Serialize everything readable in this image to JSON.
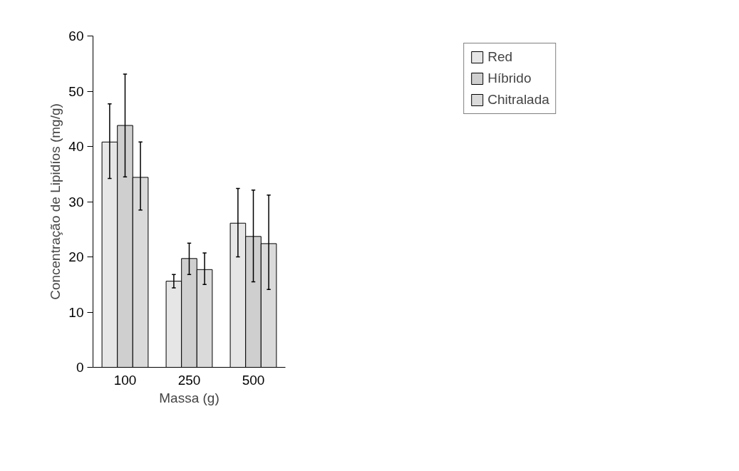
{
  "chart_data": {
    "type": "bar",
    "xlabel": "Massa (g)",
    "ylabel": "Concentração de Lipidíos (mg/g)",
    "categories": [
      "100",
      "250",
      "500"
    ],
    "ylim": [
      0,
      60
    ],
    "yticks": [
      0,
      10,
      20,
      30,
      40,
      50,
      60
    ],
    "grid": false,
    "legend": "top right",
    "series": [
      {
        "name": "Red",
        "color": "#e6e6e6",
        "values": [
          40.8,
          15.6,
          26.1
        ],
        "errors": [
          [
            34.2,
            47.7
          ],
          [
            14.4,
            16.8
          ],
          [
            20.0,
            32.4
          ]
        ]
      },
      {
        "name": "Híbrido",
        "color": "#cfcfcf",
        "values": [
          43.8,
          19.7,
          23.7
        ],
        "errors": [
          [
            34.5,
            53.1
          ],
          [
            16.8,
            22.5
          ],
          [
            15.5,
            32.1
          ]
        ]
      },
      {
        "name": "Chitralada",
        "color": "#dadada",
        "values": [
          34.4,
          17.7,
          22.4
        ],
        "errors": [
          [
            28.5,
            40.8
          ],
          [
            15.0,
            20.7
          ],
          [
            14.1,
            31.2
          ]
        ]
      }
    ]
  }
}
